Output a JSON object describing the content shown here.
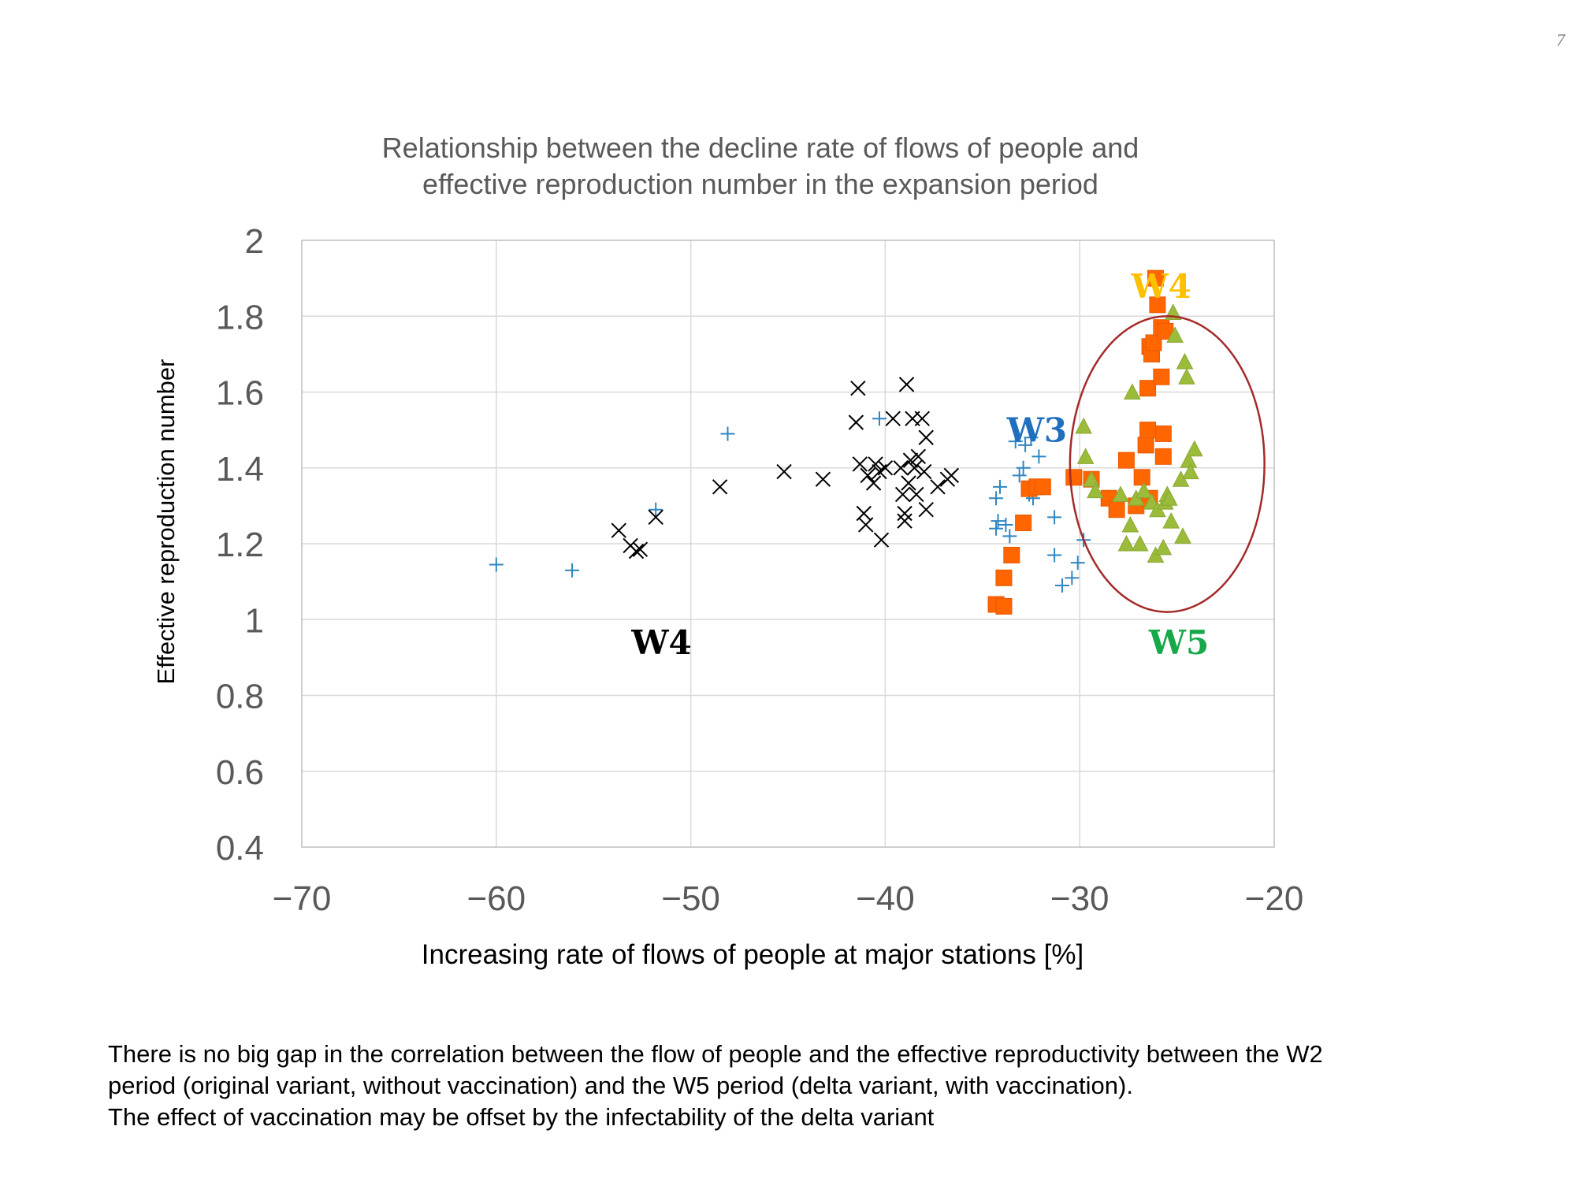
{
  "page_number": "7",
  "chart_data": {
    "type": "scatter",
    "title": "Relationship between the decline rate of flows of people and\neffective reproduction number in the expansion period",
    "xlabel": "Increasing rate of flows of people at major stations [%]",
    "ylabel": "Effective reproduction number",
    "xlim": [
      -70,
      -20
    ],
    "ylim": [
      0.4,
      2
    ],
    "xticks": [
      -70,
      -60,
      -50,
      -40,
      -30,
      -20
    ],
    "yticks": [
      0.4,
      0.6,
      0.8,
      1,
      1.2,
      1.4,
      1.6,
      1.8,
      2
    ],
    "ytick_labels": [
      "0.4",
      "0.6",
      "0.8",
      "1",
      "1.2",
      "1.4",
      "1.6",
      "1.8",
      "2"
    ],
    "grid": true,
    "colors": {
      "plus": "#2e86c1",
      "cross": "#000000",
      "square": "#ff6600",
      "triangle": "#9bbb3b",
      "ellipse": "#a52a2a",
      "label_w4_black": "#000000",
      "label_w3": "#1f6fbf",
      "label_w4_orange": "#ffc000",
      "label_w5": "#17a84a"
    },
    "labels": [
      {
        "text": "W4",
        "x": -51.5,
        "y": 0.94,
        "color": "#000000"
      },
      {
        "text": "W3",
        "x": -32.2,
        "y": 1.5,
        "color": "#1f6fbf"
      },
      {
        "text": "W4",
        "x": -25.8,
        "y": 1.88,
        "color": "#ffc000"
      },
      {
        "text": "W5",
        "x": -24.9,
        "y": 0.94,
        "color": "#17a84a"
      }
    ],
    "highlight_ellipse": {
      "cx": -25.5,
      "cy": 1.41,
      "rx": 5,
      "ry": 0.39
    },
    "series": [
      {
        "marker": "plus",
        "points": [
          [
            -60,
            1.145
          ],
          [
            -56.1,
            1.13
          ],
          [
            -51.8,
            1.29
          ],
          [
            -48.1,
            1.49
          ],
          [
            -40.3,
            1.53
          ],
          [
            -34.3,
            1.32
          ],
          [
            -34.1,
            1.35
          ],
          [
            -34.2,
            1.26
          ],
          [
            -34.3,
            1.24
          ],
          [
            -33.8,
            1.25
          ],
          [
            -33.6,
            1.22
          ],
          [
            -33.3,
            1.47
          ],
          [
            -33.1,
            1.38
          ],
          [
            -32.9,
            1.4
          ],
          [
            -32.8,
            1.46
          ],
          [
            -32.6,
            1.33
          ],
          [
            -32.5,
            1.48
          ],
          [
            -32.4,
            1.32
          ],
          [
            -32.1,
            1.43
          ],
          [
            -31.3,
            1.27
          ],
          [
            -31.3,
            1.17
          ],
          [
            -30.9,
            1.09
          ],
          [
            -30.4,
            1.11
          ],
          [
            -30.1,
            1.15
          ],
          [
            -29.8,
            1.21
          ]
        ]
      },
      {
        "marker": "cross",
        "points": [
          [
            -53.7,
            1.235
          ],
          [
            -53.1,
            1.195
          ],
          [
            -52.8,
            1.18
          ],
          [
            -52.6,
            1.185
          ],
          [
            -51.8,
            1.27
          ],
          [
            -48.5,
            1.35
          ],
          [
            -45.2,
            1.39
          ],
          [
            -43.2,
            1.37
          ],
          [
            -41.5,
            1.52
          ],
          [
            -41.4,
            1.61
          ],
          [
            -41.3,
            1.41
          ],
          [
            -41.1,
            1.28
          ],
          [
            -41,
            1.25
          ],
          [
            -40.9,
            1.38
          ],
          [
            -40.6,
            1.36
          ],
          [
            -40.5,
            1.41
          ],
          [
            -40.3,
            1.39
          ],
          [
            -40.2,
            1.21
          ],
          [
            -40,
            1.4
          ],
          [
            -39.6,
            1.53
          ],
          [
            -39.2,
            1.4
          ],
          [
            -39.1,
            1.33
          ],
          [
            -39,
            1.28
          ],
          [
            -39,
            1.26
          ],
          [
            -38.9,
            1.62
          ],
          [
            -38.8,
            1.36
          ],
          [
            -38.7,
            1.42
          ],
          [
            -38.6,
            1.53
          ],
          [
            -38.5,
            1.4
          ],
          [
            -38.4,
            1.33
          ],
          [
            -38.3,
            1.43
          ],
          [
            -38.1,
            1.53
          ],
          [
            -38,
            1.39
          ],
          [
            -37.9,
            1.48
          ],
          [
            -37.9,
            1.29
          ],
          [
            -37.3,
            1.35
          ],
          [
            -36.8,
            1.37
          ],
          [
            -36.6,
            1.38
          ]
        ]
      },
      {
        "marker": "square",
        "points": [
          [
            -34.3,
            1.04
          ],
          [
            -33.9,
            1.035
          ],
          [
            -33.9,
            1.11
          ],
          [
            -33.5,
            1.17
          ],
          [
            -32.9,
            1.255
          ],
          [
            -32.6,
            1.345
          ],
          [
            -32.2,
            1.35
          ],
          [
            -31.9,
            1.35
          ],
          [
            -30.3,
            1.375
          ],
          [
            -29.4,
            1.37
          ],
          [
            -28.5,
            1.32
          ],
          [
            -28.1,
            1.29
          ],
          [
            -27.6,
            1.42
          ],
          [
            -27.1,
            1.3
          ],
          [
            -26.8,
            1.375
          ],
          [
            -26.6,
            1.46
          ],
          [
            -26.5,
            1.5
          ],
          [
            -26.5,
            1.61
          ],
          [
            -26.4,
            1.32
          ],
          [
            -26.4,
            1.72
          ],
          [
            -26.3,
            1.7
          ],
          [
            -26.2,
            1.73
          ],
          [
            -26.1,
            1.9
          ],
          [
            -26,
            1.83
          ],
          [
            -25.8,
            1.64
          ],
          [
            -25.8,
            1.77
          ],
          [
            -25.7,
            1.43
          ],
          [
            -25.7,
            1.49
          ],
          [
            -25.6,
            1.76
          ]
        ]
      },
      {
        "marker": "triangle",
        "points": [
          [
            -29.8,
            1.51
          ],
          [
            -29.7,
            1.43
          ],
          [
            -29.4,
            1.37
          ],
          [
            -29.2,
            1.34
          ],
          [
            -27.9,
            1.33
          ],
          [
            -27.6,
            1.2
          ],
          [
            -27.4,
            1.25
          ],
          [
            -27.3,
            1.6
          ],
          [
            -27.1,
            1.32
          ],
          [
            -26.9,
            1.2
          ],
          [
            -26.7,
            1.34
          ],
          [
            -26.3,
            1.31
          ],
          [
            -26.1,
            1.17
          ],
          [
            -26,
            1.29
          ],
          [
            -25.7,
            1.19
          ],
          [
            -25.6,
            1.31
          ],
          [
            -25.5,
            1.33
          ],
          [
            -25.4,
            1.32
          ],
          [
            -25.3,
            1.26
          ],
          [
            -25.2,
            1.81
          ],
          [
            -25.1,
            1.75
          ],
          [
            -24.8,
            1.37
          ],
          [
            -24.7,
            1.22
          ],
          [
            -24.6,
            1.68
          ],
          [
            -24.5,
            1.64
          ],
          [
            -24.4,
            1.42
          ],
          [
            -24.3,
            1.39
          ],
          [
            -24.1,
            1.45
          ]
        ]
      }
    ]
  },
  "caption": {
    "line1": "There is no big gap in the correlation between the flow of people and the effective reproductivity between the W2",
    "line2": "period (original variant, without vaccination) and the W5 period (delta variant, with vaccination).",
    "line3": "The effect of vaccination may be offset by the infectability of the delta variant"
  }
}
